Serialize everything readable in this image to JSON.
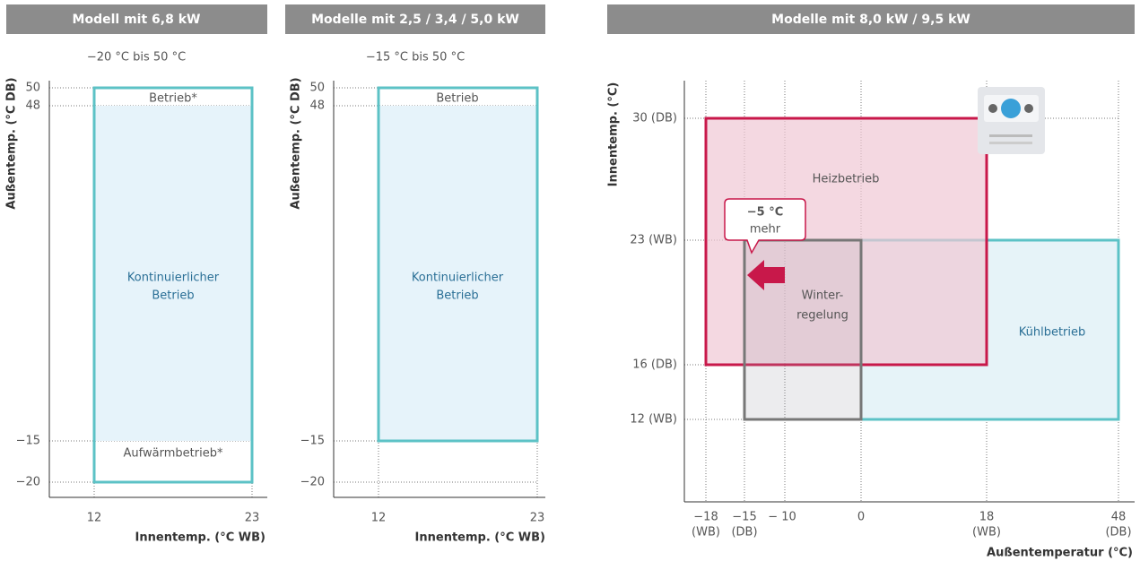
{
  "panels": [
    {
      "header": "Modell mit 6,8 kW",
      "subtitle": "−20 °C bis 50 °C",
      "y_axis_label": "Außentemp. (°C DB)",
      "x_axis_label": "Innentemp. (°C WB)",
      "y_ticks": [
        "50",
        "48",
        "−15",
        "−20"
      ],
      "x_ticks": [
        "12",
        "23"
      ],
      "regions": {
        "top": "Betrieb*",
        "middle": [
          "Kontinuierlicher",
          "Betrieb"
        ],
        "bottom": "Aufwärmbetrieb*"
      }
    },
    {
      "header": "Modelle mit 2,5 / 3,4 / 5,0 kW",
      "subtitle": "−15 °C bis 50 °C",
      "y_axis_label": "Außentemp. (°C DB)",
      "x_axis_label": "Innentemp. (°C WB)",
      "y_ticks": [
        "50",
        "48",
        "−15",
        "−20"
      ],
      "x_ticks": [
        "12",
        "23"
      ],
      "regions": {
        "top": "Betrieb",
        "middle": [
          "Kontinuierlicher",
          "Betrieb"
        ]
      }
    },
    {
      "header": "Modelle mit 8,0 kW / 9,5 kW",
      "y_axis_label": "Innentemp. (°C)",
      "x_axis_label": "Außentemperatur (°C)",
      "y_ticks": [
        "30 (DB)",
        "23 (WB)",
        "16 (DB)",
        "12 (WB)"
      ],
      "x_ticks": [
        [
          "−18",
          "(WB)"
        ],
        [
          "−15",
          "(DB)"
        ],
        [
          "− 10"
        ],
        [
          "0"
        ],
        [
          "18",
          "(WB)"
        ],
        [
          "48",
          "(DB)"
        ]
      ],
      "regions": {
        "heating": "Heizbetrieb",
        "cooling": "Kühlbetrieb",
        "winter": [
          "Winter-",
          "regelung"
        ],
        "callout": [
          "−5 °C",
          "mehr"
        ]
      }
    }
  ]
}
